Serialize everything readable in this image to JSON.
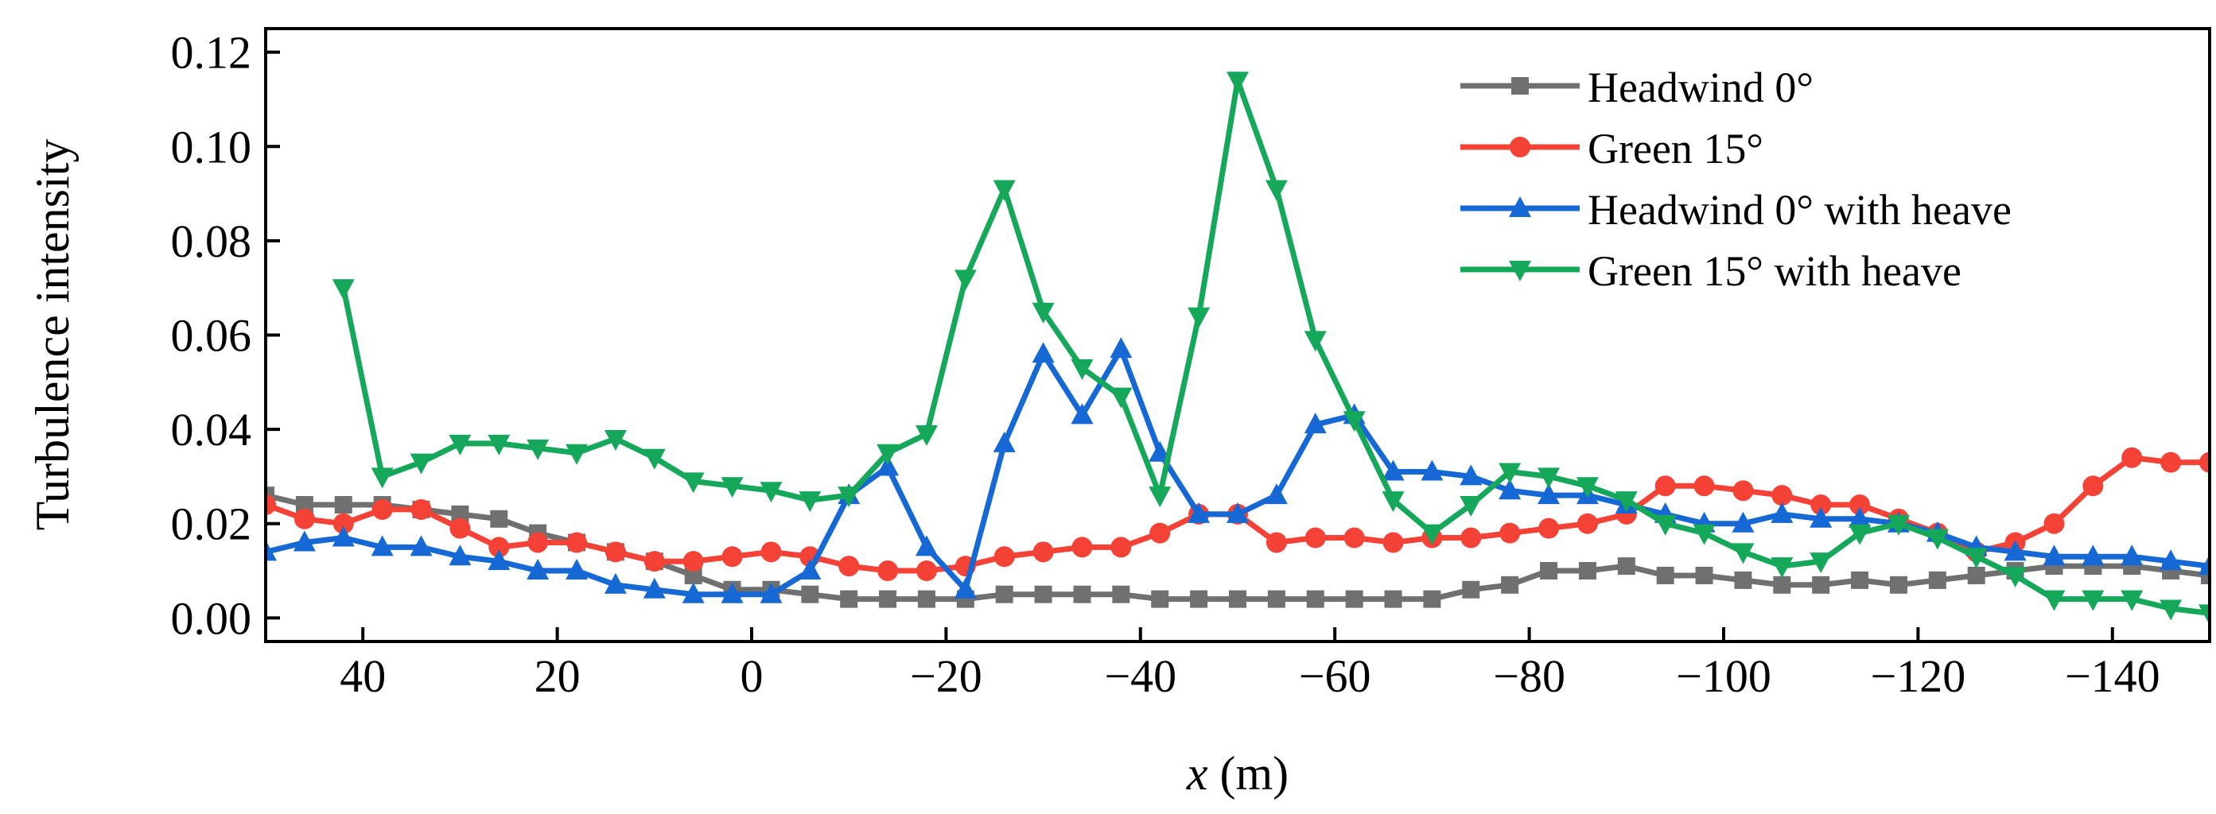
{
  "chart_data": {
    "type": "line",
    "title": "",
    "xlabel_italic": "x",
    "xlabel_rest": " (m)",
    "ylabel": "Turbulence intensity",
    "xlim": [
      50,
      -150
    ],
    "ylim": [
      -0.005,
      0.125
    ],
    "xticks": [
      40,
      20,
      0,
      -20,
      -40,
      -60,
      -80,
      -100,
      -120,
      -140
    ],
    "xtick_labels": [
      "40",
      "20",
      "0",
      "−20",
      "−40",
      "−60",
      "−80",
      "−100",
      "−120",
      "−140"
    ],
    "yticks": [
      0.0,
      0.02,
      0.04,
      0.06,
      0.08,
      0.1,
      0.12
    ],
    "ytick_labels": [
      "0.00",
      "0.02",
      "0.04",
      "0.06",
      "0.08",
      "0.10",
      "0.12"
    ],
    "grid": false,
    "legend_position": "top-right",
    "x": [
      50,
      46,
      42,
      38,
      34,
      30,
      26,
      22,
      18,
      14,
      10,
      6,
      2,
      -2,
      -6,
      -10,
      -14,
      -18,
      -22,
      -26,
      -30,
      -34,
      -38,
      -42,
      -46,
      -50,
      -54,
      -58,
      -62,
      -66,
      -70,
      -74,
      -78,
      -82,
      -86,
      -90,
      -94,
      -98,
      -102,
      -106,
      -110,
      -114,
      -118,
      -122,
      -126,
      -130,
      -134,
      -138,
      -142,
      -146,
      -150
    ],
    "series": [
      {
        "name": "Headwind 0°",
        "color": "#707070",
        "marker": "square",
        "values": [
          0.026,
          0.024,
          0.024,
          0.024,
          0.023,
          0.022,
          0.021,
          0.018,
          0.016,
          0.014,
          0.012,
          0.009,
          0.006,
          0.006,
          0.005,
          0.004,
          0.004,
          0.004,
          0.004,
          0.005,
          0.005,
          0.005,
          0.005,
          0.004,
          0.004,
          0.004,
          0.004,
          0.004,
          0.004,
          0.004,
          0.004,
          0.006,
          0.007,
          0.01,
          0.01,
          0.011,
          0.009,
          0.009,
          0.008,
          0.007,
          0.007,
          0.008,
          0.007,
          0.008,
          0.009,
          0.01,
          0.011,
          0.011,
          0.011,
          0.01,
          0.009
        ]
      },
      {
        "name": "Green 15°",
        "color": "#f44336",
        "marker": "circle",
        "values": [
          0.024,
          0.021,
          0.02,
          0.023,
          0.023,
          0.019,
          0.015,
          0.016,
          0.016,
          0.014,
          0.012,
          0.012,
          0.013,
          0.014,
          0.013,
          0.011,
          0.01,
          0.01,
          0.011,
          0.013,
          0.014,
          0.015,
          0.015,
          0.018,
          0.022,
          0.022,
          0.016,
          0.017,
          0.017,
          0.016,
          0.017,
          0.017,
          0.018,
          0.019,
          0.02,
          0.022,
          0.028,
          0.028,
          0.027,
          0.026,
          0.024,
          0.024,
          0.021,
          0.018,
          0.014,
          0.016,
          0.02,
          0.028,
          0.034,
          0.033,
          0.033
        ]
      },
      {
        "name": "Headwind 0° with heave",
        "color": "#1669d4",
        "marker": "triangle-up",
        "values": [
          0.014,
          0.016,
          0.017,
          0.015,
          0.015,
          0.013,
          0.012,
          0.01,
          0.01,
          0.007,
          0.006,
          0.005,
          0.005,
          0.005,
          0.01,
          0.026,
          0.032,
          0.015,
          0.006,
          0.037,
          0.056,
          0.043,
          0.057,
          0.035,
          0.022,
          0.022,
          0.026,
          0.041,
          0.043,
          0.031,
          0.031,
          0.03,
          0.027,
          0.026,
          0.026,
          0.024,
          0.022,
          0.02,
          0.02,
          0.022,
          0.021,
          0.021,
          0.02,
          0.018,
          0.015,
          0.014,
          0.013,
          0.013,
          0.013,
          0.012,
          0.011
        ]
      },
      {
        "name": "Green 15° with heave",
        "color": "#16a85a",
        "marker": "triangle-down",
        "values": [
          null,
          null,
          0.07,
          0.03,
          0.033,
          0.037,
          0.037,
          0.036,
          0.035,
          0.038,
          0.034,
          0.029,
          0.028,
          0.027,
          0.025,
          0.026,
          0.035,
          0.039,
          0.072,
          0.091,
          0.065,
          0.053,
          0.047,
          0.026,
          0.064,
          0.114,
          0.091,
          0.059,
          0.042,
          0.025,
          0.018,
          0.024,
          0.031,
          0.03,
          0.028,
          0.025,
          0.02,
          0.018,
          0.014,
          0.011,
          0.012,
          0.018,
          0.02,
          0.017,
          0.013,
          0.009,
          0.004,
          0.004,
          0.004,
          0.002,
          0.001
        ]
      }
    ]
  }
}
